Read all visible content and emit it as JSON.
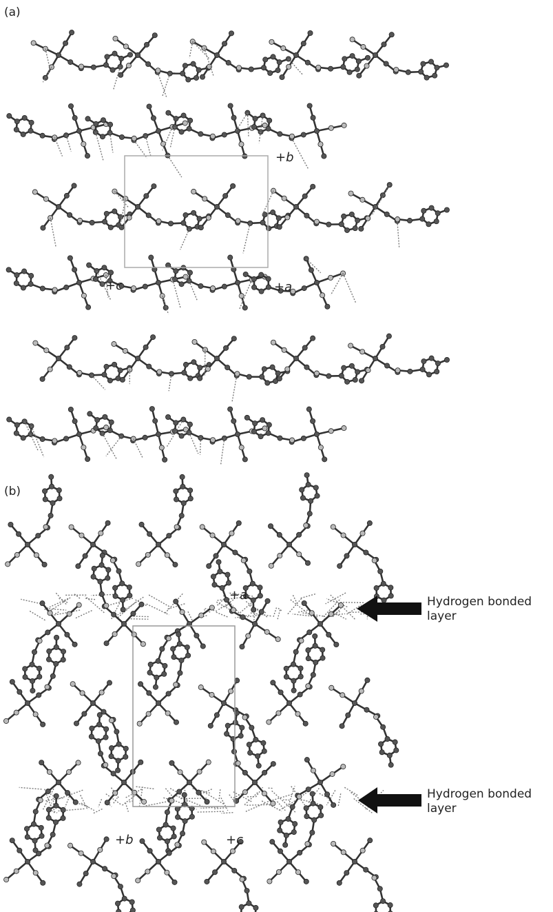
{
  "panels": [
    {
      "label": "(a)",
      "axes": [
        "+b",
        "+c",
        "+a"
      ]
    },
    {
      "label": "(b)",
      "axes": [
        "+a",
        "+b",
        "+c"
      ],
      "arrows": [
        "Hydrogen bonded layer",
        "Hydrogen bonded layer"
      ]
    }
  ]
}
